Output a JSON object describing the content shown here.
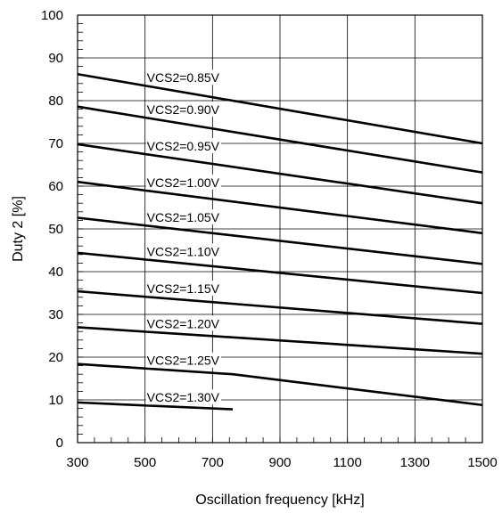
{
  "chart_data": {
    "type": "line",
    "xlabel": "Oscillation frequency [kHz]",
    "ylabel": "Duty 2 [%]",
    "xlim": [
      300,
      1500
    ],
    "ylim": [
      0,
      100
    ],
    "x_ticks": [
      300,
      500,
      700,
      900,
      1100,
      1300,
      1500
    ],
    "y_ticks": [
      0,
      10,
      20,
      30,
      40,
      50,
      60,
      70,
      80,
      90,
      100
    ],
    "grid": true,
    "series": [
      {
        "name": "VCS2=0.85V",
        "x": [
          300,
          1500
        ],
        "y": [
          86.2,
          70.0
        ]
      },
      {
        "name": "VCS2=0.90V",
        "x": [
          300,
          1500
        ],
        "y": [
          78.6,
          63.2
        ]
      },
      {
        "name": "VCS2=0.95V",
        "x": [
          300,
          1500
        ],
        "y": [
          69.8,
          56.0
        ]
      },
      {
        "name": "VCS2=1.00V",
        "x": [
          300,
          1500
        ],
        "y": [
          61.0,
          49.0
        ]
      },
      {
        "name": "VCS2=1.05V",
        "x": [
          300,
          1500
        ],
        "y": [
          52.6,
          41.8
        ]
      },
      {
        "name": "VCS2=1.10V",
        "x": [
          300,
          1500
        ],
        "y": [
          44.4,
          35.0
        ]
      },
      {
        "name": "VCS2=1.15V",
        "x": [
          300,
          1500
        ],
        "y": [
          35.4,
          27.8
        ]
      },
      {
        "name": "VCS2=1.20V",
        "x": [
          300,
          1500
        ],
        "y": [
          27.0,
          20.8
        ]
      },
      {
        "name": "VCS2=1.25V",
        "x": [
          300,
          760,
          1500
        ],
        "y": [
          18.4,
          16.0,
          8.8
        ]
      },
      {
        "name": "VCS2=1.30V",
        "x": [
          300,
          760
        ],
        "y": [
          9.4,
          7.8
        ]
      }
    ]
  }
}
